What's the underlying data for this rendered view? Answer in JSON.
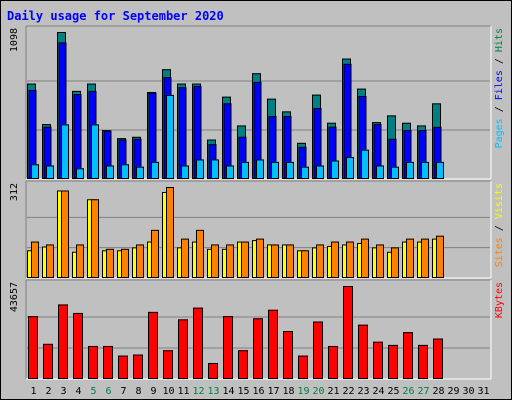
{
  "chart_data": [
    {
      "type": "bar",
      "title": "Daily usage for September 2020",
      "y_max_label": "1098",
      "right_label": [
        {
          "text": "Pages",
          "color": "#00c0ff"
        },
        {
          "text": " / ",
          "color": "#000000"
        },
        {
          "text": "Files",
          "color": "#0000ff"
        },
        {
          "text": " / ",
          "color": "#000000"
        },
        {
          "text": "Hits",
          "color": "#008040"
        }
      ],
      "ylim": [
        0,
        1098
      ],
      "categories": [
        "1",
        "2",
        "3",
        "4",
        "5",
        "6",
        "7",
        "8",
        "9",
        "10",
        "11",
        "12",
        "13",
        "14",
        "15",
        "16",
        "17",
        "18",
        "19",
        "20",
        "21",
        "22",
        "23",
        "24",
        "25",
        "26",
        "27",
        "28",
        "29",
        "30",
        "31"
      ],
      "weekend_days": [
        "5",
        "6",
        "12",
        "13",
        "19",
        "20",
        "26",
        "27"
      ],
      "weekend_color": "#008040",
      "series": [
        {
          "name": "Hits",
          "color": "#008080",
          "values": [
            713,
            410,
            1098,
            658,
            713,
            365,
            305,
            315,
            650,
            820,
            713,
            713,
            295,
            615,
            400,
            790,
            600,
            505,
            270,
            630,
            420,
            900,
            675,
            425,
            475,
            420,
            400,
            565,
            0,
            0,
            0
          ]
        },
        {
          "name": "Files",
          "color": "#0000ff",
          "values": [
            665,
            390,
            1020,
            634,
            658,
            360,
            295,
            300,
            645,
            760,
            685,
            695,
            260,
            565,
            315,
            725,
            470,
            470,
            240,
            530,
            390,
            860,
            620,
            410,
            300,
            365,
            365,
            389,
            0,
            0,
            0
          ]
        },
        {
          "name": "Pages",
          "color": "#00c0ff",
          "values": [
            110,
            101,
            408,
            80,
            408,
            101,
            110,
            92,
            128,
            628,
            101,
            146,
            146,
            101,
            128,
            146,
            128,
            128,
            92,
            101,
            138,
            164,
            219,
            101,
            92,
            128,
            128,
            128,
            0,
            0,
            0
          ]
        }
      ]
    },
    {
      "type": "bar",
      "y_max_label": "312",
      "right_label": [
        {
          "text": "Sites",
          "color": "#ff8000"
        },
        {
          "text": " / ",
          "color": "#000000"
        },
        {
          "text": "Visits",
          "color": "#ffff00"
        }
      ],
      "ylim": [
        0,
        312
      ],
      "series": [
        {
          "name": "Visits",
          "color": "#ffff00",
          "values": [
            95,
            108,
            300,
            90,
            270,
            95,
            95,
            105,
            125,
            295,
            105,
            125,
            100,
            100,
            125,
            130,
            115,
            115,
            95,
            105,
            110,
            115,
            120,
            105,
            90,
            125,
            125,
            135,
            0,
            0,
            0
          ]
        },
        {
          "name": "Sites",
          "color": "#ff8000",
          "values": [
            125,
            115,
            300,
            115,
            270,
            100,
            100,
            115,
            165,
            312,
            135,
            165,
            115,
            115,
            125,
            135,
            115,
            115,
            95,
            115,
            125,
            125,
            135,
            115,
            105,
            135,
            135,
            145,
            0,
            0,
            0
          ]
        }
      ]
    },
    {
      "type": "bar",
      "y_max_label": "43657",
      "right_label": [
        {
          "text": "KBytes",
          "color": "#ff0000"
        }
      ],
      "ylim": [
        0,
        43657
      ],
      "series": [
        {
          "name": "KBytes",
          "color": "#ff0000",
          "values": [
            29500,
            16500,
            35000,
            31000,
            15500,
            15500,
            11000,
            11500,
            31500,
            13500,
            28000,
            33500,
            7500,
            29500,
            13500,
            28500,
            32500,
            22500,
            11000,
            27000,
            15500,
            43657,
            25500,
            17500,
            16000,
            22000,
            16000,
            19000,
            0,
            0,
            0
          ]
        }
      ]
    }
  ]
}
